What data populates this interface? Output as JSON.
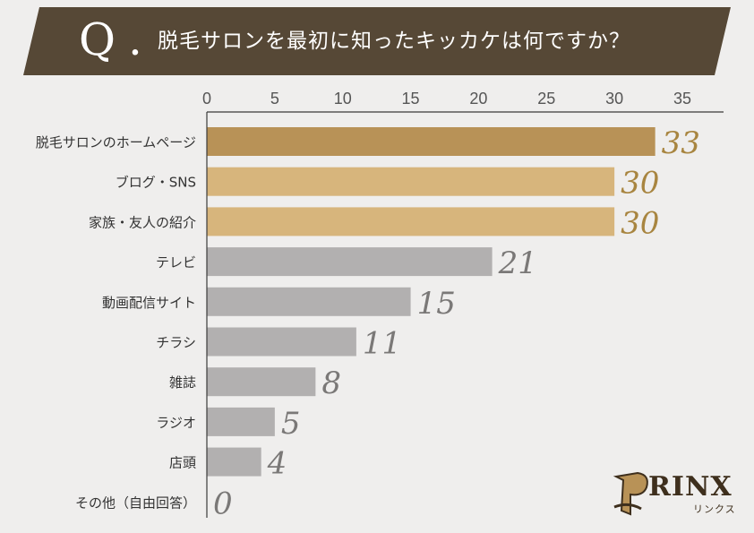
{
  "header": {
    "q_letter": "Q",
    "q_dot": ".",
    "question": "脱毛サロンを最初に知ったキッカケは何ですか？",
    "banner_color": "#564836"
  },
  "chart_data": {
    "type": "bar",
    "orientation": "horizontal",
    "title": "脱毛サロンを最初に知ったキッカケは何ですか？",
    "xlim": [
      0,
      35
    ],
    "x_ticks": [
      "0",
      "5",
      "10",
      "15",
      "20",
      "25",
      "30",
      "35"
    ],
    "categories": [
      "脱毛サロンのホームページ",
      "ブログ・SNS",
      "家族・友人の紹介",
      "テレビ",
      "動画配信サイト",
      "チラシ",
      "雑誌",
      "ラジオ",
      "店頭",
      "その他（自由回答）"
    ],
    "values": [
      33,
      30,
      30,
      21,
      15,
      11,
      8,
      5,
      4,
      0
    ],
    "bar_colors": [
      "#b89257",
      "#d7b57c",
      "#d7b57c",
      "#b2b0b0",
      "#b2b0b0",
      "#b2b0b0",
      "#b2b0b0",
      "#b2b0b0",
      "#b2b0b0",
      "#b2b0b0"
    ],
    "label_colors": [
      "#a88540",
      "#a88540",
      "#a88540",
      "#7a7877",
      "#7a7877",
      "#7a7877",
      "#7a7877",
      "#7a7877",
      "#7a7877",
      "#7a7877"
    ],
    "grid": false
  },
  "logo": {
    "name": "RINX",
    "sub": "リンクス"
  }
}
